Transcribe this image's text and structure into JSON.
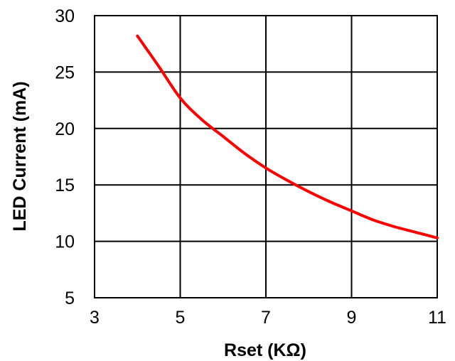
{
  "chart_data": {
    "type": "line",
    "xlabel": "Rset (KΩ)",
    "ylabel": "LED Current (mA)",
    "xlim": [
      3,
      11
    ],
    "ylim": [
      5,
      30
    ],
    "x_ticks": [
      "3",
      "5",
      "7",
      "9",
      "11"
    ],
    "y_ticks": [
      "5",
      "10",
      "15",
      "20",
      "25",
      "30"
    ],
    "grid": true,
    "line_color": "#ff0000",
    "series": [
      {
        "x": [
          4.0,
          4.5,
          5.0,
          5.5,
          6.0,
          6.5,
          7.0,
          7.5,
          8.0,
          8.5,
          9.0,
          9.5,
          10.0,
          10.5,
          11.0
        ],
        "y": [
          28.2,
          25.5,
          22.7,
          20.8,
          19.3,
          17.8,
          16.5,
          15.4,
          14.4,
          13.5,
          12.7,
          11.9,
          11.3,
          10.8,
          10.3
        ]
      }
    ]
  }
}
